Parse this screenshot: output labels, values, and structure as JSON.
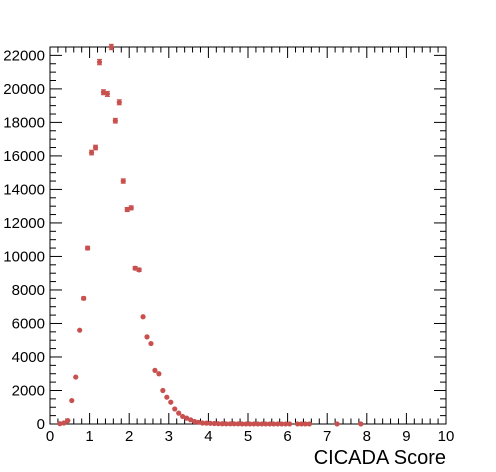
{
  "chart_data": {
    "type": "scatter",
    "title": "",
    "xlabel": "CICADA Score",
    "ylabel": "",
    "xlim": [
      0,
      10
    ],
    "ylim": [
      0,
      22500
    ],
    "x_ticks": [
      0,
      1,
      2,
      3,
      4,
      5,
      6,
      7,
      8,
      9,
      10
    ],
    "y_ticks": [
      0,
      2000,
      4000,
      6000,
      8000,
      10000,
      12000,
      14000,
      16000,
      18000,
      20000,
      22000
    ],
    "grid": false,
    "legend": "none",
    "marker_color": "#c8504e",
    "series": [
      {
        "x": [
          0.25,
          0.35,
          0.45,
          0.55,
          0.65,
          0.75,
          0.85,
          0.95,
          1.05,
          1.15,
          1.25,
          1.35,
          1.45,
          1.55,
          1.65,
          1.75,
          1.85,
          1.95,
          2.05,
          2.15,
          2.25,
          2.35,
          2.45,
          2.55,
          2.65,
          2.75,
          2.85,
          2.95,
          3.05,
          3.15,
          3.25,
          3.35,
          3.45,
          3.55,
          3.65,
          3.75,
          3.85,
          3.95,
          4.05,
          4.15,
          4.25,
          4.35,
          4.45,
          4.55,
          4.65,
          4.75,
          4.85,
          4.95,
          5.05,
          5.15,
          5.25,
          5.35,
          5.45,
          5.55,
          5.65,
          5.75,
          5.85,
          5.95,
          6.05,
          6.25,
          6.35,
          6.45,
          6.55,
          7.25,
          7.85
        ],
        "y": [
          20,
          60,
          200,
          1400,
          2800,
          5600,
          7500,
          10500,
          16200,
          16500,
          21600,
          19800,
          19700,
          22500,
          18100,
          19200,
          14500,
          12800,
          12900,
          9300,
          9200,
          6400,
          5200,
          4800,
          3200,
          3000,
          2000,
          1600,
          1300,
          900,
          650,
          450,
          350,
          250,
          150,
          100,
          60,
          50,
          40,
          30,
          20,
          15,
          10,
          10,
          10,
          10,
          5,
          5,
          5,
          5,
          5,
          5,
          5,
          5,
          5,
          5,
          5,
          5,
          5,
          5,
          5,
          5,
          5,
          5,
          5
        ],
        "err": [
          5,
          10,
          20,
          40,
          60,
          80,
          90,
          110,
          140,
          140,
          160,
          150,
          150,
          160,
          140,
          150,
          130,
          120,
          120,
          100,
          100,
          80,
          75,
          70,
          60,
          55,
          45,
          40,
          36,
          30,
          25,
          21,
          19,
          16,
          12,
          10,
          8,
          7,
          6,
          5,
          4,
          4,
          3,
          3,
          3,
          3,
          2,
          2,
          2,
          2,
          2,
          2,
          2,
          2,
          2,
          2,
          2,
          2,
          2,
          2,
          2,
          2,
          2,
          2,
          2
        ]
      }
    ]
  }
}
